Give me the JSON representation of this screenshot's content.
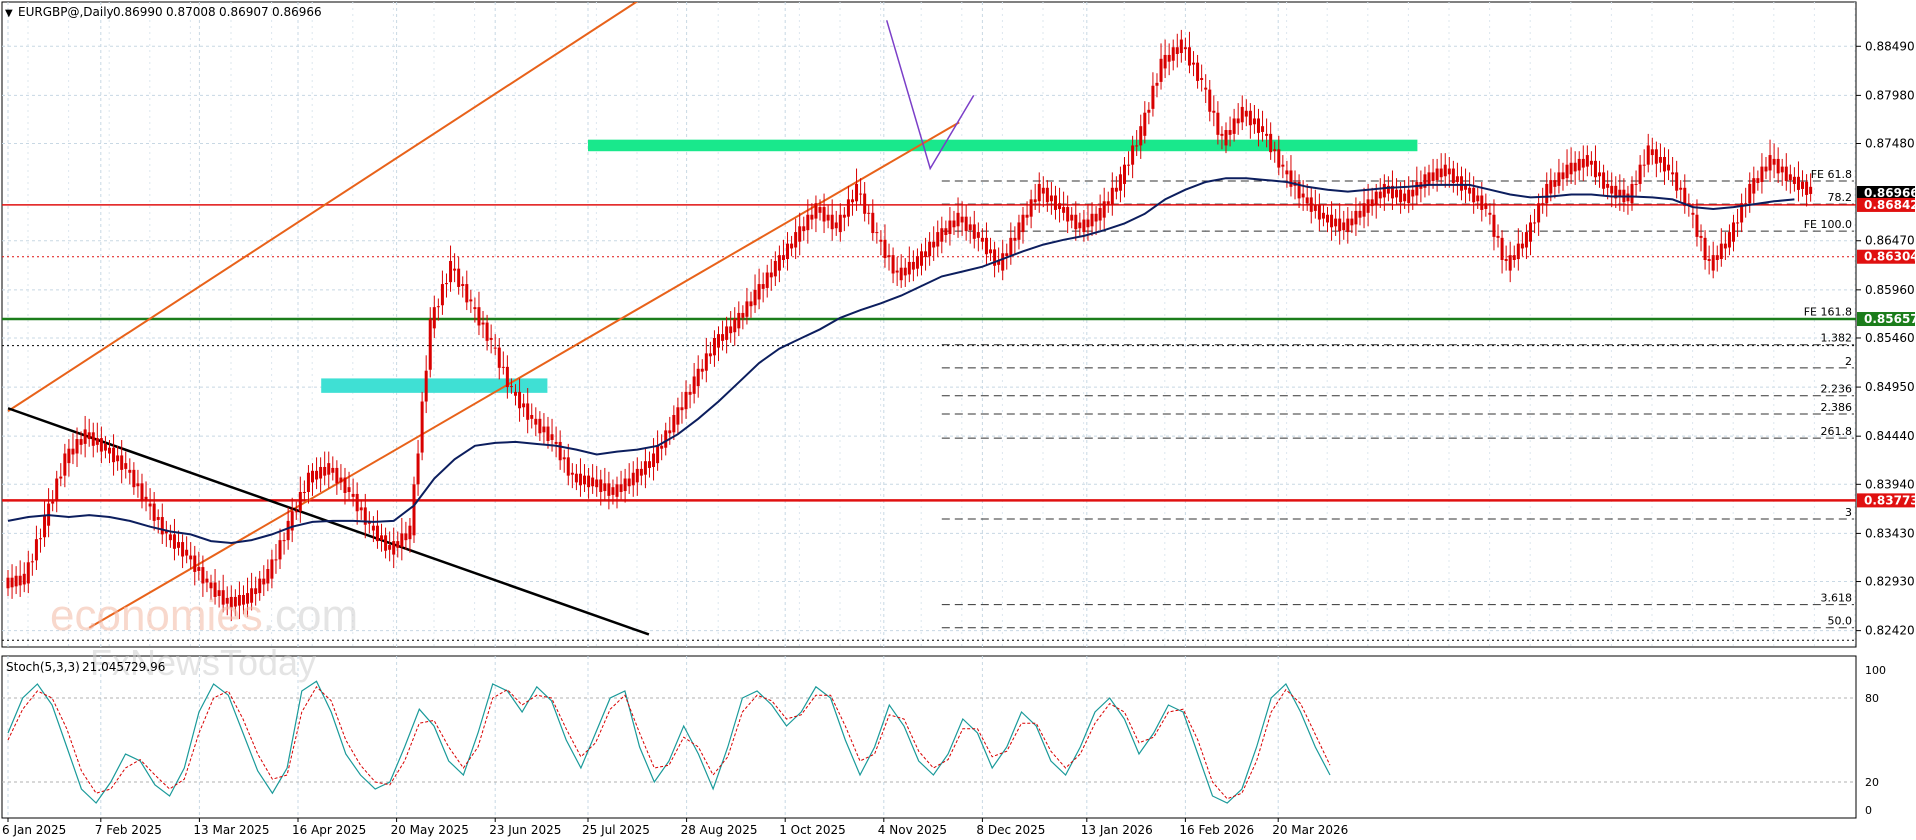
{
  "header": {
    "menu_glyph": "▼",
    "symbol": "EURGBP@,Daily",
    "ohlc": [
      "0.86990",
      "0.87008",
      "0.86907",
      "0.86966"
    ]
  },
  "indicator": {
    "label": "Stoch(5,3,3)",
    "values": [
      "21.0457",
      "29.96"
    ],
    "scale_labels": [
      "100",
      "80",
      "20",
      "0"
    ]
  },
  "watermark": {
    "line1_accent": "economies",
    "line1_rest": ".com",
    "line2_accent": "Fx",
    "line2_rest": "NewsToday"
  },
  "colors": {
    "candle": "#d80000",
    "ma": "#0c1e5e",
    "stoch_main": "#1a9a9a",
    "stoch_signal": "#d80000",
    "green_zone": "#19e88c",
    "cyan_zone": "#3fe0d4",
    "channel": "#e8621a",
    "trendline": "#000000",
    "support_green": "#1b7d1b",
    "support_red": "#e01010",
    "wave": "#7b3fc8"
  },
  "chart_data": {
    "type": "candlestick",
    "title": "EURGBP@,Daily",
    "interval": "Daily",
    "ylim": [
      0.8225,
      0.8895
    ],
    "y_ticks": [
      "0.88490",
      "0.87980",
      "0.87480",
      "0.86470",
      "0.85960",
      "0.85460",
      "0.84950",
      "0.84440",
      "0.83940",
      "0.83430",
      "0.82930",
      "0.82420"
    ],
    "x_ticks": [
      "6 Jan 2025",
      "7 Feb 2025",
      "13 Mar 2025",
      "16 Apr 2025",
      "20 May 2025",
      "23 Jun 2025",
      "25 Jul 2025",
      "28 Aug 2025",
      "1 Oct 2025",
      "4 Nov 2025",
      "8 Dec 2025",
      "13 Jan 2026",
      "16 Feb 2026",
      "20 Mar 2026"
    ],
    "last_price": "0.86966",
    "price_tags": [
      {
        "value": 0.86966,
        "label": "0.86966",
        "color": "#000000"
      },
      {
        "value": 0.86842,
        "label": "0.86842",
        "color": "#e01010"
      },
      {
        "value": 0.86304,
        "label": "0.86304",
        "color": "#e01010"
      },
      {
        "value": 0.85657,
        "label": "0.85657",
        "color": "#1b7d1b"
      },
      {
        "value": 0.83773,
        "label": "0.83773",
        "color": "#e01010"
      }
    ],
    "horizontal_lines": [
      {
        "value": 0.86842,
        "color": "#e01010",
        "style": "solid"
      },
      {
        "value": 0.86304,
        "color": "#e01010",
        "style": "dotted"
      },
      {
        "value": 0.85657,
        "color": "#1b7d1b",
        "style": "solid"
      },
      {
        "value": 0.83773,
        "color": "#e01010",
        "style": "solid"
      },
      {
        "value": 0.8538,
        "color": "#000000",
        "style": "dotted"
      },
      {
        "value": 0.8232,
        "color": "#000000",
        "style": "dotted"
      }
    ],
    "fib_levels": [
      {
        "label": "FE 61.8",
        "value": 0.8709
      },
      {
        "label": "78.2",
        "value": 0.8685
      },
      {
        "label": "FE 100.0",
        "value": 0.8657
      },
      {
        "label": "FE 161.8",
        "value": 0.8566
      },
      {
        "label": "1.382",
        "value": 0.8539
      },
      {
        "label": "2",
        "value": 0.8515
      },
      {
        "label": "2.236",
        "value": 0.8486
      },
      {
        "label": "2.386",
        "value": 0.8467
      },
      {
        "label": "261.8",
        "value": 0.8442
      },
      {
        "label": "3",
        "value": 0.8358
      },
      {
        "label": "3.618",
        "value": 0.8269
      },
      {
        "label": "50.0",
        "value": 0.8245
      }
    ],
    "zones": [
      {
        "name": "resistance-zone",
        "y_top": 0.8752,
        "y_bottom": 0.874,
        "from_date": "2025-07-25",
        "to_date": "2026-05-07"
      },
      {
        "name": "support-zone",
        "y_top": 0.8504,
        "y_bottom": 0.8489,
        "from_date": "2025-04-24",
        "to_date": "2025-07-11"
      }
    ],
    "trendlines": [
      {
        "name": "channel-upper",
        "from": [
          "2025-01-06",
          0.847
        ],
        "to": [
          "2025-08-30",
          0.8933
        ]
      },
      {
        "name": "channel-lower",
        "from": [
          "2025-02-03",
          0.8245
        ],
        "to": [
          "2025-11-30",
          0.877
        ]
      },
      {
        "name": "falling-trendline",
        "from": [
          "2025-01-06",
          0.8473
        ],
        "to": [
          "2025-08-15",
          0.8238
        ]
      }
    ],
    "wave_points": [
      [
        "2025-11-05",
        0.8876
      ],
      [
        "2025-11-20",
        0.8722
      ],
      [
        "2025-12-05",
        0.8798
      ]
    ],
    "closes": [
      0.8295,
      0.8355,
      0.842,
      0.8445,
      0.843,
      0.841,
      0.8375,
      0.834,
      0.832,
      0.829,
      0.827,
      0.8275,
      0.83,
      0.835,
      0.84,
      0.841,
      0.8385,
      0.835,
      0.8325,
      0.8345,
      0.856,
      0.862,
      0.858,
      0.854,
      0.849,
      0.846,
      0.844,
      0.84,
      0.8395,
      0.8385,
      0.84,
      0.842,
      0.846,
      0.85,
      0.854,
      0.856,
      0.859,
      0.862,
      0.865,
      0.868,
      0.866,
      0.87,
      0.865,
      0.861,
      0.8625,
      0.865,
      0.867,
      0.865,
      0.862,
      0.866,
      0.87,
      0.868,
      0.866,
      0.8675,
      0.871,
      0.876,
      0.883,
      0.885,
      0.881,
      0.875,
      0.878,
      0.876,
      0.872,
      0.869,
      0.867,
      0.866,
      0.868,
      0.87,
      0.869,
      0.871,
      0.872,
      0.87,
      0.868,
      0.862,
      0.865,
      0.87,
      0.872,
      0.873,
      0.87,
      0.869,
      0.874,
      0.872,
      0.868,
      0.862,
      0.865,
      0.87,
      0.873,
      0.871,
      0.8697
    ],
    "ma": [
      0.8356,
      0.836,
      0.8362,
      0.836,
      0.8362,
      0.836,
      0.8356,
      0.835,
      0.8345,
      0.8342,
      0.8335,
      0.8333,
      0.8336,
      0.8342,
      0.835,
      0.8355,
      0.8356,
      0.8356,
      0.8355,
      0.8356,
      0.8372,
      0.84,
      0.842,
      0.8434,
      0.8437,
      0.8438,
      0.8436,
      0.8434,
      0.843,
      0.8425,
      0.8428,
      0.843,
      0.8434,
      0.8446,
      0.8462,
      0.848,
      0.85,
      0.852,
      0.8535,
      0.8545,
      0.8555,
      0.8567,
      0.8575,
      0.8582,
      0.859,
      0.86,
      0.861,
      0.8615,
      0.862,
      0.8628,
      0.8636,
      0.8643,
      0.8648,
      0.8652,
      0.8658,
      0.8665,
      0.8675,
      0.869,
      0.87,
      0.8708,
      0.8712,
      0.8712,
      0.871,
      0.8708,
      0.8703,
      0.87,
      0.8698,
      0.87,
      0.8702,
      0.8703,
      0.8705,
      0.8705,
      0.8705,
      0.87,
      0.8695,
      0.8692,
      0.8693,
      0.8695,
      0.8695,
      0.8693,
      0.8693,
      0.8692,
      0.869,
      0.8682,
      0.868,
      0.8682,
      0.8685,
      0.8688,
      0.869
    ],
    "stoch_k": [
      55,
      80,
      90,
      75,
      45,
      15,
      5,
      20,
      40,
      35,
      18,
      10,
      30,
      70,
      90,
      82,
      55,
      28,
      12,
      30,
      85,
      92,
      70,
      40,
      25,
      15,
      20,
      45,
      72,
      60,
      35,
      25,
      55,
      90,
      85,
      70,
      88,
      78,
      50,
      30,
      55,
      80,
      85,
      45,
      20,
      35,
      60,
      40,
      15,
      45,
      80,
      85,
      75,
      60,
      70,
      88,
      80,
      50,
      25,
      45,
      75,
      60,
      35,
      25,
      40,
      65,
      55,
      30,
      45,
      70,
      60,
      35,
      25,
      45,
      70,
      80,
      65,
      40,
      55,
      75,
      70,
      40,
      10,
      5,
      15,
      45,
      80,
      90,
      70,
      45,
      25
    ],
    "stoch_d": [
      50,
      72,
      85,
      80,
      58,
      28,
      12,
      15,
      30,
      36,
      25,
      15,
      22,
      55,
      80,
      85,
      65,
      40,
      22,
      25,
      70,
      88,
      78,
      50,
      32,
      20,
      18,
      35,
      62,
      64,
      45,
      30,
      45,
      80,
      86,
      75,
      82,
      80,
      58,
      38,
      48,
      72,
      82,
      55,
      30,
      32,
      52,
      45,
      25,
      38,
      70,
      82,
      78,
      65,
      68,
      82,
      82,
      60,
      35,
      40,
      68,
      65,
      42,
      30,
      36,
      58,
      58,
      38,
      42,
      62,
      62,
      42,
      30,
      40,
      62,
      76,
      70,
      48,
      52,
      70,
      72,
      50,
      20,
      8,
      12,
      35,
      70,
      86,
      76,
      54,
      32
    ]
  }
}
